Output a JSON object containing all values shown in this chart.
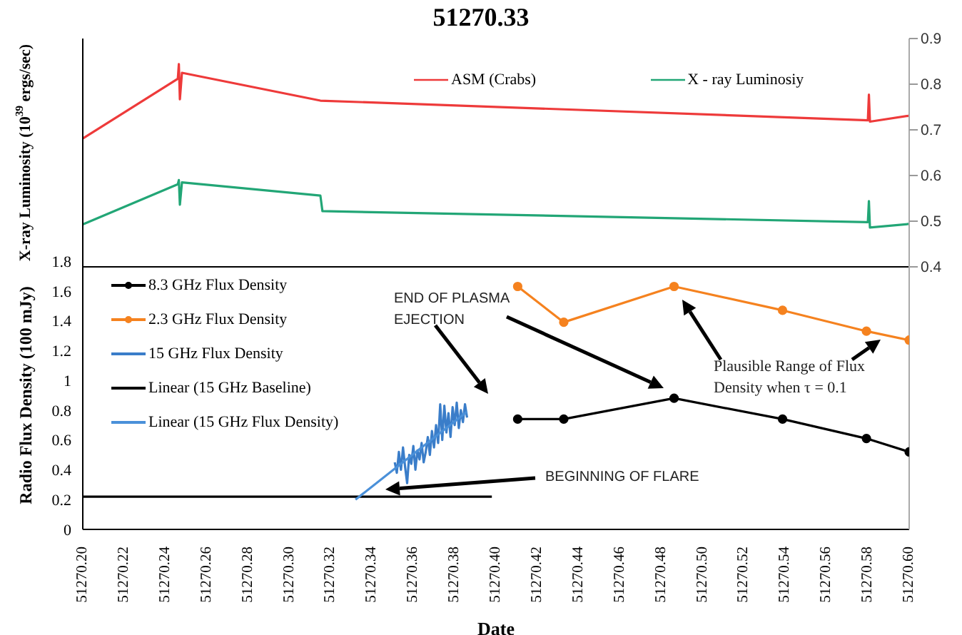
{
  "chart_data": [
    {
      "type": "line",
      "title": "51270.33",
      "ylabel": "X-ray Luminosity (10$^{39}$ ergs/sec)",
      "xlim": [
        51270.2,
        51270.6
      ],
      "ylim": [
        0.4,
        0.9
      ],
      "yticks": [
        0.4,
        0.5,
        0.6,
        0.7,
        0.8,
        0.9
      ],
      "tick_labels": "y",
      "legend": "top",
      "marker": "none",
      "line_style": "solid",
      "series": [
        {
          "name": "ASM (Crabs)",
          "color": "#ee3a3a",
          "x": [
            51270.2,
            51270.246,
            51270.2465,
            51270.247,
            51270.248,
            51270.315,
            51270.58,
            51270.5805,
            51270.581,
            51270.6
          ],
          "values": [
            0.681,
            0.812,
            0.844,
            0.767,
            0.825,
            0.764,
            0.721,
            0.777,
            0.718,
            0.731
          ]
        },
        {
          "name": "X - ray Luminosiy",
          "color": "#22a676",
          "x": [
            51270.2,
            51270.246,
            51270.2465,
            51270.247,
            51270.248,
            51270.315,
            51270.316,
            51270.58,
            51270.5805,
            51270.581,
            51270.6
          ],
          "values": [
            0.493,
            0.581,
            0.59,
            0.536,
            0.585,
            0.556,
            0.522,
            0.498,
            0.544,
            0.486,
            0.494
          ]
        }
      ]
    },
    {
      "type": "line",
      "xlabel": "Date",
      "ylabel": "Radio Flux Density (100 mJy)",
      "xlim": [
        51270.2,
        51270.6
      ],
      "xticks": [
        {
          "value": 51270.2,
          "label": "51270.20"
        },
        {
          "value": 51270.22,
          "label": "51270.22"
        },
        {
          "value": 51270.24,
          "label": "51270.24"
        },
        {
          "value": 51270.26,
          "label": "51270.26"
        },
        {
          "value": 51270.28,
          "label": "51270.28"
        },
        {
          "value": 51270.3,
          "label": "51270.30"
        },
        {
          "value": 51270.32,
          "label": "51270.32"
        },
        {
          "value": 51270.34,
          "label": "51270.34"
        },
        {
          "value": 51270.36,
          "label": "51270.36"
        },
        {
          "value": 51270.38,
          "label": "51270.38"
        },
        {
          "value": 51270.4,
          "label": "51270.40"
        },
        {
          "value": 51270.42,
          "label": "51270.42"
        },
        {
          "value": 51270.44,
          "label": "51270.44"
        },
        {
          "value": 51270.46,
          "label": "51270.46"
        },
        {
          "value": 51270.48,
          "label": "51270.48"
        },
        {
          "value": 51270.5,
          "label": "51270.50"
        },
        {
          "value": 51270.52,
          "label": "51270.52"
        },
        {
          "value": 51270.54,
          "label": "51270.54"
        },
        {
          "value": 51270.56,
          "label": "51270.56"
        },
        {
          "value": 51270.58,
          "label": "51270.58"
        },
        {
          "value": 51270.6,
          "label": "51270.60"
        }
      ],
      "ylim": [
        0,
        1.8
      ],
      "yticks": [
        0,
        0.2,
        0.4,
        0.6,
        0.8,
        1,
        1.2,
        1.4,
        1.6,
        1.8
      ],
      "legend": "top left",
      "line_style": "solid",
      "annotations": [
        "END OF PLASMA EJECTION",
        "BEGINNING OF FLARE",
        "Plausible Range of Flux Density when τ = 0.1"
      ],
      "series": [
        {
          "name": "8.3 GHz Flux Density",
          "color": "#000000",
          "marker": "circle",
          "x": [
            51270.4105,
            51270.4328,
            51270.4862,
            51270.5387,
            51270.5793,
            51270.6
          ],
          "values": [
            0.74,
            0.74,
            0.88,
            0.74,
            0.61,
            0.52
          ]
        },
        {
          "name": "2.3 GHz Flux Density",
          "color": "#f5821f",
          "marker": "circle",
          "x": [
            51270.4105,
            51270.4328,
            51270.4862,
            51270.5387,
            51270.5793,
            51270.6
          ],
          "values": [
            1.63,
            1.39,
            1.63,
            1.47,
            1.33,
            1.27
          ]
        },
        {
          "name": "15 GHz Flux Density",
          "color": "#3a7dc9",
          "marker": "none",
          "x": [
            51270.351,
            51270.352,
            51270.353,
            51270.354,
            51270.355,
            51270.356,
            51270.357,
            51270.358,
            51270.359,
            51270.36,
            51270.361,
            51270.362,
            51270.363,
            51270.364,
            51270.365,
            51270.366,
            51270.367,
            51270.368,
            51270.369,
            51270.37,
            51270.371,
            51270.372,
            51270.373,
            51270.374,
            51270.375,
            51270.376,
            51270.377,
            51270.378,
            51270.379,
            51270.38,
            51270.381,
            51270.382,
            51270.383,
            51270.384,
            51270.385,
            51270.386
          ],
          "values": [
            0.45,
            0.38,
            0.52,
            0.4,
            0.55,
            0.42,
            0.31,
            0.5,
            0.44,
            0.56,
            0.4,
            0.53,
            0.47,
            0.58,
            0.45,
            0.52,
            0.62,
            0.5,
            0.66,
            0.55,
            0.7,
            0.58,
            0.84,
            0.6,
            0.83,
            0.65,
            0.78,
            0.62,
            0.82,
            0.7,
            0.85,
            0.68,
            0.8,
            0.72,
            0.84,
            0.75
          ]
        },
        {
          "name": "Linear (15 GHz Baseline)",
          "color": "#000000",
          "marker": "none",
          "x": [
            51270.2,
            51270.398
          ],
          "values": [
            0.22,
            0.22
          ]
        },
        {
          "name": "Linear (15 GHz Flux Density)",
          "color": "#4a90d9",
          "marker": "none",
          "x": [
            51270.332,
            51270.386
          ],
          "values": [
            0.2,
            0.79
          ]
        }
      ]
    }
  ]
}
